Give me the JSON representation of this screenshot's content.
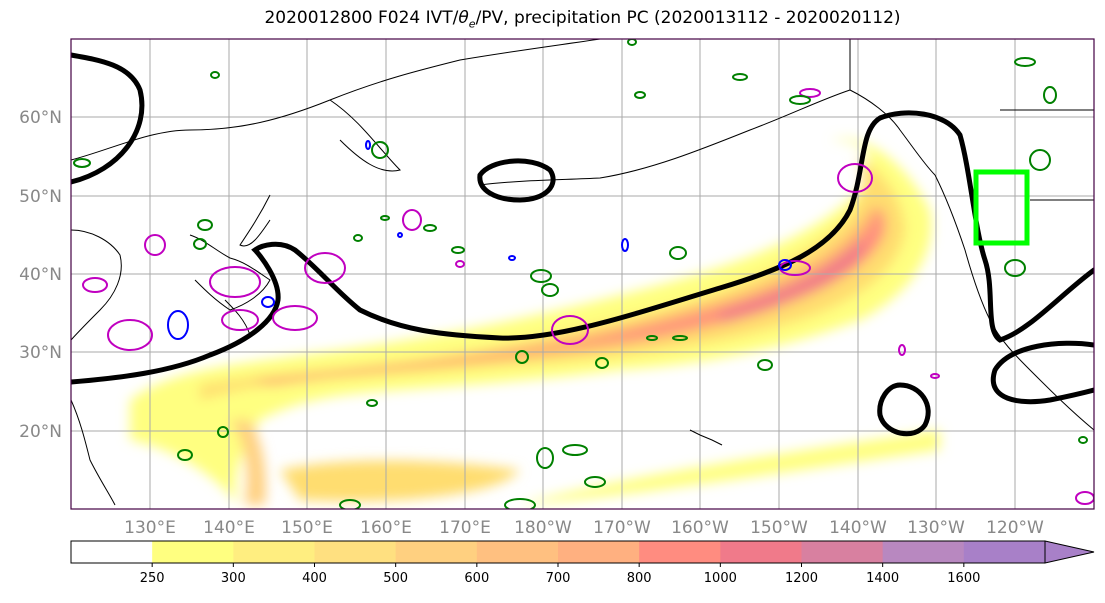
{
  "title": {
    "prefix": "2020012800 F024 IVT/",
    "theta": "θ",
    "theta_sub": "e",
    "suffix": "/PV, precipitation PC (2020013112 - 2020020112)"
  },
  "map": {
    "lat_labels": [
      "60°N",
      "50°N",
      "40°N",
      "30°N",
      "20°N"
    ],
    "lat_values": [
      60,
      50,
      40,
      30,
      20
    ],
    "lon_labels": [
      "130°E",
      "140°E",
      "150°E",
      "160°E",
      "170°E",
      "180°W",
      "170°W",
      "160°W",
      "150°W",
      "140°W",
      "130°W",
      "120°W"
    ],
    "lon_extent": [
      120,
      250
    ],
    "lat_extent": [
      10,
      70
    ],
    "colors": {
      "ivt_max": "#ff6d6d",
      "theta_e_contour": "#000000",
      "pv_contour": "#c000c0",
      "precip_pos": "#008000",
      "precip_neg": "#0000ff",
      "target_box": "#00ff00"
    }
  },
  "colorbar": {
    "ticks": [
      "250",
      "300",
      "400",
      "500",
      "600",
      "700",
      "800",
      "1000",
      "1200",
      "1400",
      "1600"
    ],
    "colors": [
      "#ffffff",
      "#ffff80",
      "#ffee80",
      "#ffe080",
      "#ffd080",
      "#ffc080",
      "#ffb080",
      "#ff8c80",
      "#f07a8a",
      "#d880a0",
      "#b888c0",
      "#a880c8"
    ]
  }
}
